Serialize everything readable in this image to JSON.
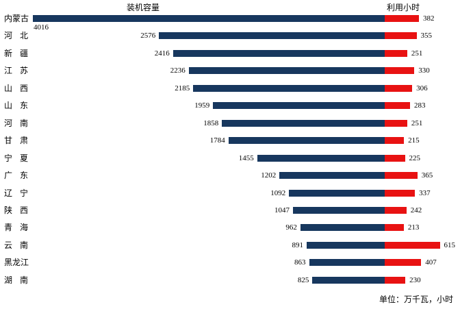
{
  "chart_data": {
    "type": "bar",
    "orientation": "horizontal",
    "column_titles": {
      "capacity": "装机容量",
      "hours": "利用小时"
    },
    "unit_note": "单位：万千瓦，小时",
    "categories": [
      "内蒙古",
      "河北",
      "新疆",
      "江苏",
      "山西",
      "山东",
      "河南",
      "甘肃",
      "宁夏",
      "广东",
      "辽宁",
      "陕西",
      "青海",
      "云南",
      "黑龙江",
      "湖南"
    ],
    "series": [
      {
        "name": "装机容量",
        "color": "#17375E",
        "values": [
          4016,
          2576,
          2416,
          2236,
          2185,
          1959,
          1858,
          1784,
          1455,
          1202,
          1092,
          1047,
          962,
          891,
          863,
          825
        ]
      },
      {
        "name": "利用小时",
        "color": "#E81212",
        "values": [
          382,
          355,
          251,
          330,
          306,
          283,
          251,
          215,
          225,
          365,
          337,
          242,
          213,
          615,
          407,
          230
        ]
      }
    ],
    "value_labels": "shown",
    "grid": false,
    "legend_position": "none",
    "axes": "none"
  }
}
